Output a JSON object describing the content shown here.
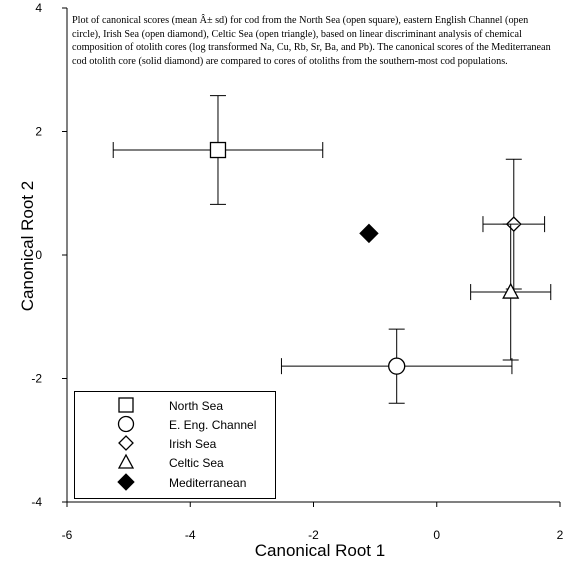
{
  "chart_data": {
    "type": "scatter",
    "title": "",
    "caption": "Plot of canonical scores (mean Â± sd) for cod from the North Sea (open square), eastern English Channel (open circle), Irish Sea (open diamond), Celtic Sea (open triangle), based on linear discriminant analysis of chemical composition of otolith cores (log transformed Na, Cu, Rb, Sr, Ba, and Pb). The canonical scores of the Mediterranean cod otolith core (solid diamond) are compared to cores of otoliths from the southern-most cod populations.",
    "xlabel": "Canonical Root 1",
    "ylabel": "Canonical Root 2",
    "xlim": [
      -6,
      2
    ],
    "ylim": [
      -4,
      4
    ],
    "xticks": [
      -6,
      -4,
      -2,
      0,
      2
    ],
    "yticks": [
      -4,
      -2,
      0,
      2,
      4
    ],
    "legend_position": "bottom-left",
    "series": [
      {
        "name": "North Sea",
        "marker": "open-square",
        "x": -3.55,
        "y": 1.7,
        "x_sd": 1.7,
        "y_sd": 0.88
      },
      {
        "name": "E. Eng. Channel",
        "marker": "open-circle",
        "x": -0.65,
        "y": -1.8,
        "x_sd": 1.87,
        "y_sd": 0.6
      },
      {
        "name": "Irish Sea",
        "marker": "open-diamond",
        "x": 1.25,
        "y": 0.5,
        "x_sd": 0.5,
        "y_sd": 1.05
      },
      {
        "name": "Celtic Sea",
        "marker": "open-triangle",
        "x": 1.2,
        "y": -0.6,
        "x_sd": 0.65,
        "y_sd": 1.1
      },
      {
        "name": "Mediterranean",
        "marker": "solid-diamond",
        "x": -1.1,
        "y": 0.35
      }
    ]
  }
}
